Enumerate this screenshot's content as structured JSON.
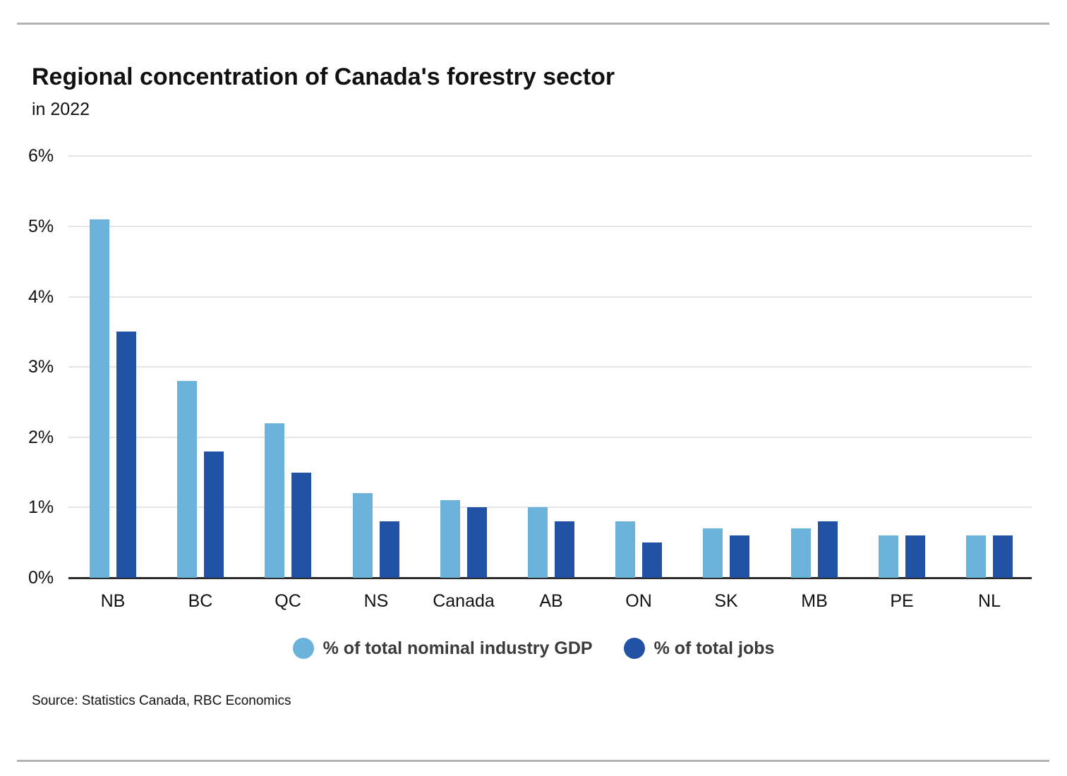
{
  "header": {
    "title": "Regional concentration of Canada's forestry sector",
    "subtitle": "in 2022"
  },
  "source": "Source: Statistics Canada, RBC Economics",
  "colors": {
    "gdp_series": "#6CB3DC",
    "jobs_series": "#2152A3",
    "gridline": "#e5e5e5",
    "axis": "#2b2b2b",
    "rule": "#b3b3b3"
  },
  "legend": [
    {
      "label": "% of total nominal industry GDP",
      "color": "#6CB3DC"
    },
    {
      "label": "% of total jobs",
      "color": "#2152A3"
    }
  ],
  "chart_data": {
    "type": "bar",
    "title": "Regional concentration of Canada's forestry sector",
    "subtitle": "in 2022",
    "categories": [
      "NB",
      "BC",
      "QC",
      "NS",
      "Canada",
      "AB",
      "ON",
      "SK",
      "MB",
      "PE",
      "NL"
    ],
    "series": [
      {
        "name": "% of total nominal industry GDP",
        "color": "#6CB3DC",
        "values": [
          5.1,
          2.8,
          2.2,
          1.2,
          1.1,
          1.0,
          0.8,
          0.7,
          0.7,
          0.6,
          0.6
        ]
      },
      {
        "name": "% of total jobs",
        "color": "#2152A3",
        "values": [
          3.5,
          1.8,
          1.5,
          0.8,
          1.0,
          0.8,
          0.5,
          0.6,
          0.8,
          0.6,
          0.6
        ]
      }
    ],
    "xlabel": "",
    "ylabel": "",
    "ylim": [
      0,
      6
    ],
    "y_ticks": [
      "0%",
      "1%",
      "2%",
      "3%",
      "4%",
      "5%",
      "6%"
    ],
    "grid": "horizontal",
    "legend_position": "bottom"
  }
}
